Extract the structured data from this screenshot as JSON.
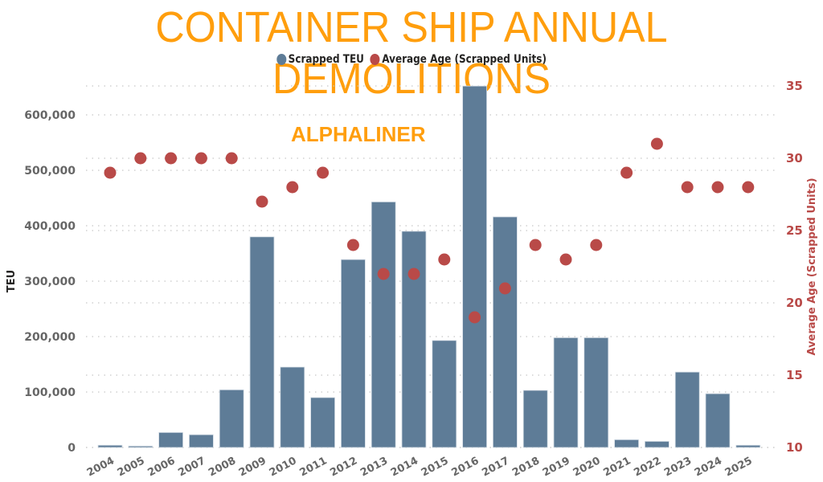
{
  "title": "CONTAINER SHIP ANNUAL DEMOLITIONS",
  "watermark": "ALPHALINER",
  "legend": [
    {
      "label": "Scrapped TEU",
      "color": "#5E7C97",
      "icon": "circle"
    },
    {
      "label": "Average Age (Scrapped Units)",
      "color": "#B94A48",
      "icon": "circle"
    }
  ],
  "colors": {
    "title": "#FF9E0D",
    "bar": "#5E7C97",
    "dot": "#B94A48",
    "grid": "#C8C8C8",
    "left_ticks": "#666666",
    "right_ticks": "#B94A48"
  },
  "chart_data": {
    "type": "bar+scatter",
    "title": "CONTAINER SHIP ANNUAL DEMOLITIONS",
    "categories": [
      "2004",
      "2005",
      "2006",
      "2007",
      "2008",
      "2009",
      "2010",
      "2011",
      "2012",
      "2013",
      "2014",
      "2015",
      "2016",
      "2017",
      "2018",
      "2019",
      "2020",
      "2021",
      "2022",
      "2023",
      "2024",
      "2025"
    ],
    "series": [
      {
        "name": "Scrapped TEU",
        "type": "bar",
        "axis": "left",
        "values": [
          4000,
          2500,
          27000,
          23000,
          104000,
          380000,
          145000,
          90000,
          339000,
          443000,
          390000,
          193000,
          652000,
          416000,
          103000,
          198000,
          198000,
          14000,
          11000,
          136000,
          97000,
          4000
        ]
      },
      {
        "name": "Average Age (Scrapped Units)",
        "type": "scatter",
        "axis": "right",
        "values": [
          29,
          30,
          30,
          30,
          30,
          27,
          28,
          29,
          24,
          22,
          22,
          23,
          19,
          21,
          24,
          23,
          24,
          29,
          31,
          28,
          28,
          28
        ]
      }
    ],
    "xlabel": "",
    "ylabel": "TEU",
    "y2label": "Average Age (Scrapped Units)",
    "ylim": [
      0,
      650000
    ],
    "y2lim": [
      10,
      35
    ],
    "yticks": [
      0,
      100000,
      200000,
      300000,
      400000,
      500000,
      600000
    ],
    "ytick_labels": [
      "0",
      "100,000",
      "200,000",
      "300,000",
      "400,000",
      "500,000",
      "600,000"
    ],
    "y2ticks": [
      10,
      15,
      20,
      25,
      30,
      35
    ],
    "grid": true,
    "legend_position": "top"
  }
}
